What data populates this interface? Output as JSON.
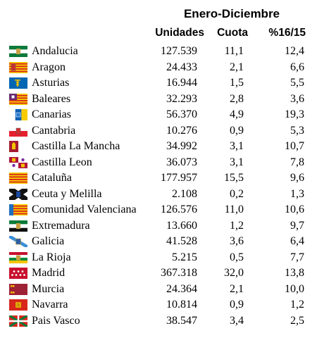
{
  "header": {
    "period": "Enero-Diciembre",
    "col_units": "Unidades",
    "col_share": "Cuota",
    "col_var": "%16/15"
  },
  "rows": [
    {
      "region": "Andalucia",
      "units": "127.539",
      "share": "11,1",
      "var": "12,4",
      "flag_icon": "andalucia-flag-icon"
    },
    {
      "region": "Aragon",
      "units": "24.433",
      "share": "2,1",
      "var": "6,6",
      "flag_icon": "aragon-flag-icon"
    },
    {
      "region": "Asturias",
      "units": "16.944",
      "share": "1,5",
      "var": "5,5",
      "flag_icon": "asturias-flag-icon"
    },
    {
      "region": "Baleares",
      "units": "32.293",
      "share": "2,8",
      "var": "3,6",
      "flag_icon": "baleares-flag-icon"
    },
    {
      "region": "Canarias",
      "units": "56.370",
      "share": "4,9",
      "var": "19,3",
      "flag_icon": "canarias-flag-icon"
    },
    {
      "region": "Cantabria",
      "units": "10.276",
      "share": "0,9",
      "var": "5,3",
      "flag_icon": "cantabria-flag-icon"
    },
    {
      "region": "Castilla La Mancha",
      "units": "34.992",
      "share": "3,1",
      "var": "10,7",
      "flag_icon": "castilla-la-mancha-flag-icon"
    },
    {
      "region": "Castilla Leon",
      "units": "36.073",
      "share": "3,1",
      "var": "7,8",
      "flag_icon": "castilla-leon-flag-icon"
    },
    {
      "region": "Cataluña",
      "units": "177.957",
      "share": "15,5",
      "var": "9,6",
      "flag_icon": "cataluna-flag-icon"
    },
    {
      "region": "Ceuta y Melilla",
      "units": "2.108",
      "share": "0,2",
      "var": "1,3",
      "flag_icon": "ceuta-melilla-flag-icon"
    },
    {
      "region": "Comunidad Valenciana",
      "units": "126.576",
      "share": "11,0",
      "var": "10,6",
      "flag_icon": "comunidad-valenciana-flag-icon"
    },
    {
      "region": "Extremadura",
      "units": "13.660",
      "share": "1,2",
      "var": "9,7",
      "flag_icon": "extremadura-flag-icon"
    },
    {
      "region": "Galicia",
      "units": "41.528",
      "share": "3,6",
      "var": "6,4",
      "flag_icon": "galicia-flag-icon"
    },
    {
      "region": "La Rioja",
      "units": "5.215",
      "share": "0,5",
      "var": "7,7",
      "flag_icon": "la-rioja-flag-icon"
    },
    {
      "region": "Madrid",
      "units": "367.318",
      "share": "32,0",
      "var": "13,8",
      "flag_icon": "madrid-flag-icon"
    },
    {
      "region": "Murcia",
      "units": "24.364",
      "share": "2,1",
      "var": "10,0",
      "flag_icon": "murcia-flag-icon"
    },
    {
      "region": "Navarra",
      "units": "10.814",
      "share": "0,9",
      "var": "1,2",
      "flag_icon": "navarra-flag-icon"
    },
    {
      "region": "Pais Vasco",
      "units": "38.547",
      "share": "3,4",
      "var": "2,5",
      "flag_icon": "pais-vasco-flag-icon"
    }
  ]
}
